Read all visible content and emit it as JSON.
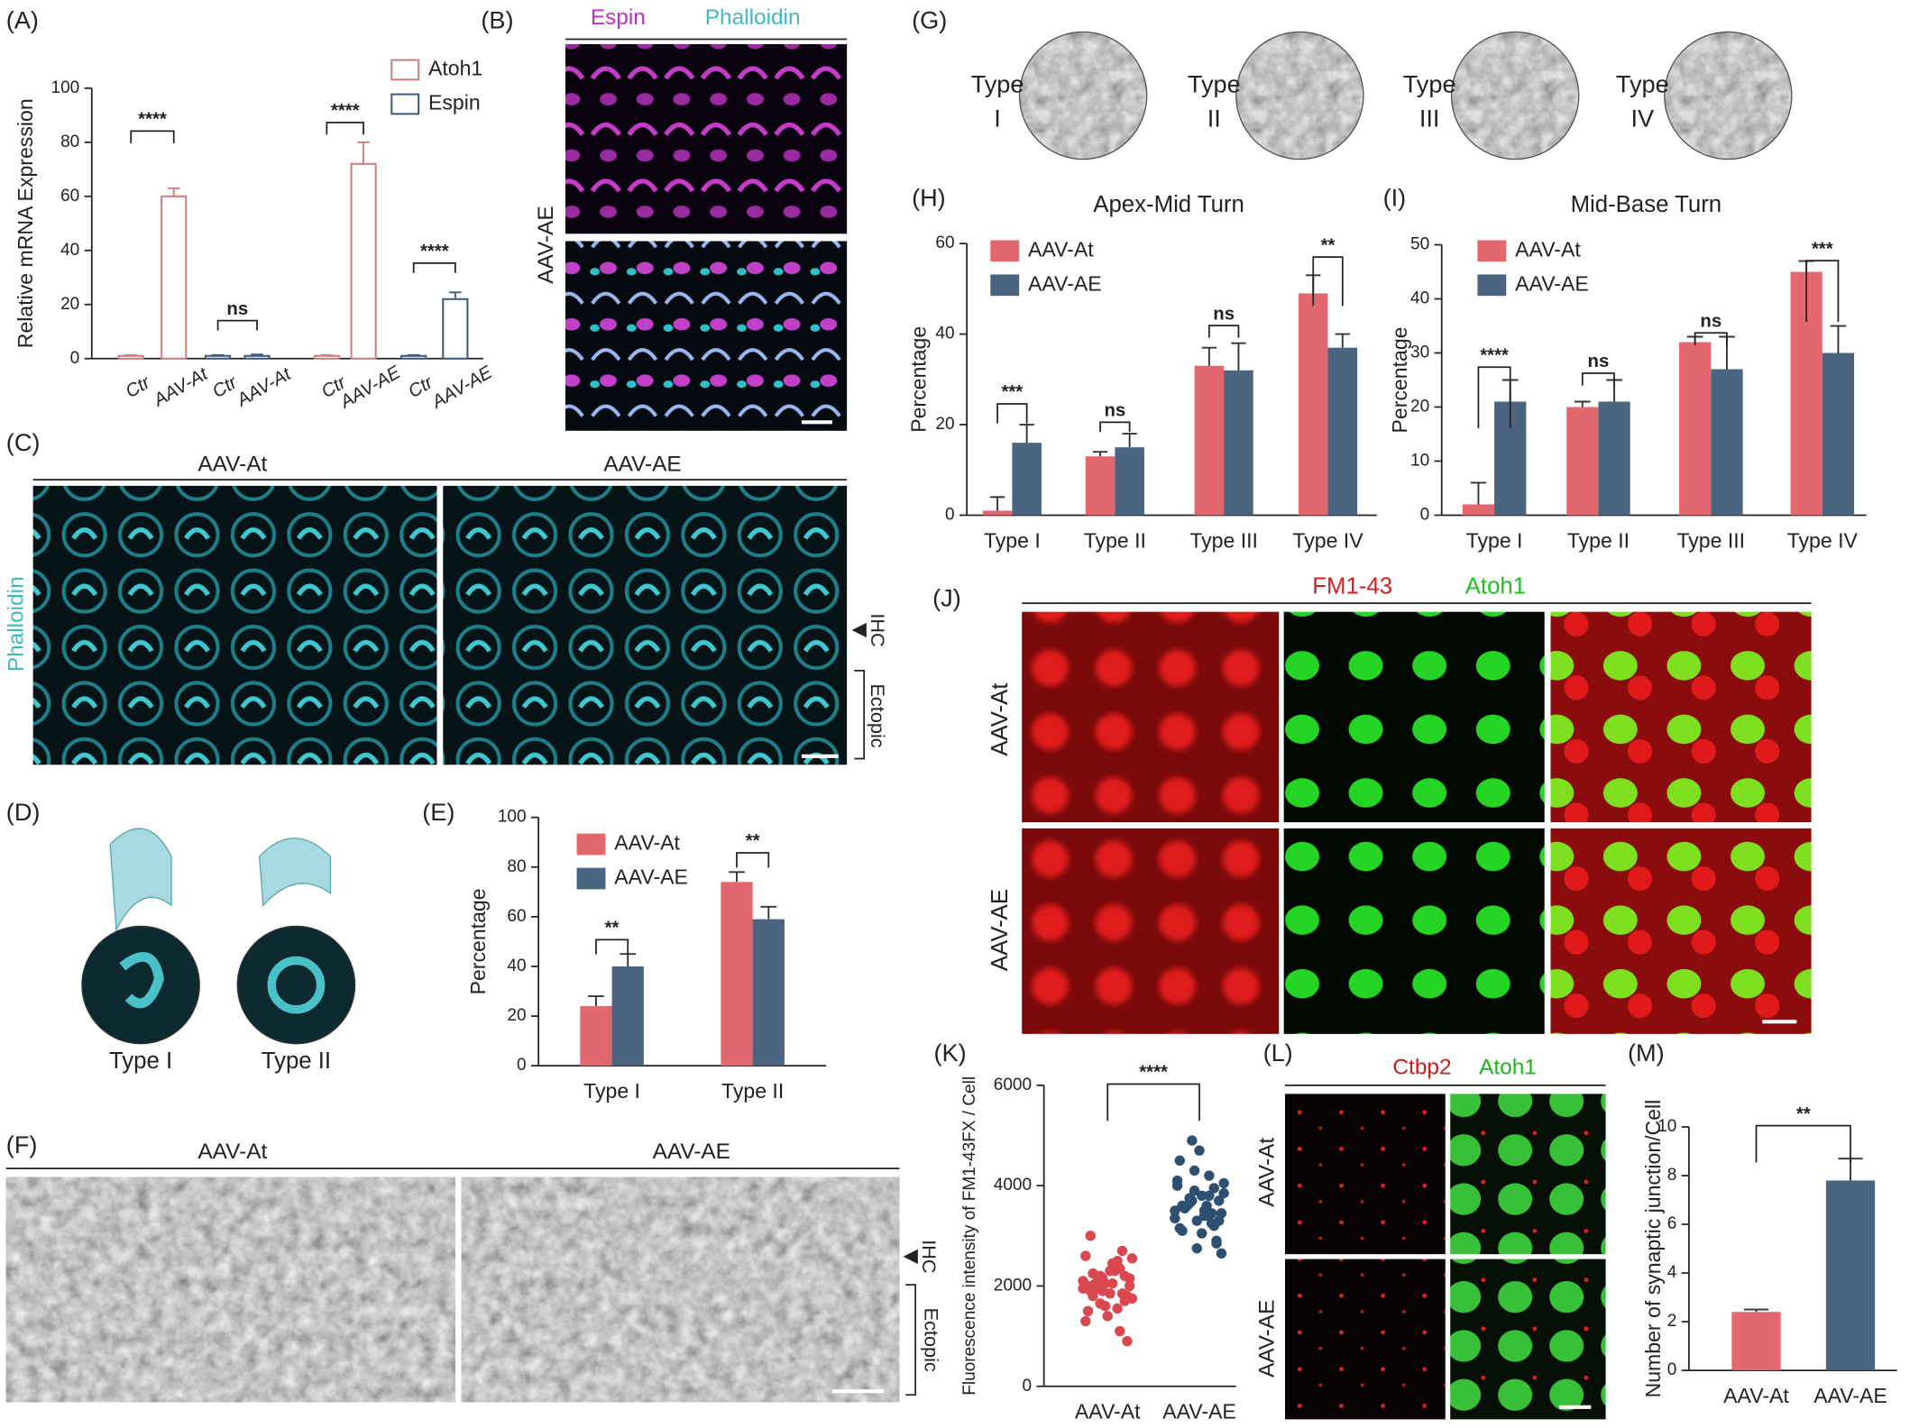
{
  "chart_data": [
    {
      "type": "bar",
      "ylabel": "Relative mRNA Expression",
      "ylim": [
        0,
        100
      ],
      "yticks": [
        0,
        20,
        40,
        60,
        80,
        100
      ],
      "bar_style": "outline",
      "categories": [
        "Ctr",
        "AAV-At",
        "Ctr",
        "AAV-At",
        "Ctr",
        "AAV-AE",
        "Ctr",
        "AAV-AE"
      ],
      "series": [
        {
          "name": "Atoh1",
          "color": "#c98080",
          "values": [
            1,
            60,
            null,
            null,
            1,
            72,
            null,
            null
          ],
          "errors": [
            0.3,
            3,
            null,
            null,
            0.3,
            8,
            null,
            null
          ]
        },
        {
          "name": "Espin",
          "color": "#3f5a7a",
          "values": [
            null,
            null,
            1,
            1,
            null,
            null,
            1,
            22
          ],
          "errors": [
            null,
            null,
            0.3,
            0.5,
            null,
            null,
            0.3,
            2.5
          ]
        }
      ],
      "annotations": [
        "****",
        "ns",
        "****",
        "****"
      ]
    },
    {
      "type": "bar",
      "ylabel": "Percentage",
      "ylim": [
        0,
        100
      ],
      "yticks": [
        0,
        20,
        40,
        60,
        80,
        100
      ],
      "bar_style": "filled",
      "categories": [
        "Type I",
        "Type II"
      ],
      "series": [
        {
          "name": "AAV-At",
          "color": "#e3676f",
          "values": [
            24,
            74
          ],
          "errors": [
            4,
            4
          ]
        },
        {
          "name": "AAV-AE",
          "color": "#4b6480",
          "values": [
            40,
            59
          ],
          "errors": [
            5,
            5
          ]
        }
      ],
      "annotations": [
        "**",
        "**"
      ]
    },
    {
      "type": "bar",
      "title": "Apex-Mid Turn",
      "ylabel": "Percentage",
      "ylim": [
        0,
        60
      ],
      "yticks": [
        0,
        20,
        40,
        60
      ],
      "bar_style": "filled",
      "categories": [
        "Type I",
        "Type II",
        "Type III",
        "Type IV"
      ],
      "series": [
        {
          "name": "AAV-At",
          "color": "#e3676f",
          "values": [
            1,
            13,
            33,
            49
          ],
          "errors": [
            3,
            1,
            4,
            4
          ]
        },
        {
          "name": "AAV-AE",
          "color": "#4b6480",
          "values": [
            16,
            15,
            32,
            37
          ],
          "errors": [
            4,
            3,
            6,
            3
          ]
        }
      ],
      "annotations": [
        "***",
        "ns",
        "ns",
        "**"
      ]
    },
    {
      "type": "bar",
      "title": "Mid-Base Turn",
      "ylabel": "Percentage",
      "ylim": [
        0,
        50
      ],
      "yticks": [
        0,
        10,
        20,
        30,
        40,
        50
      ],
      "bar_style": "filled",
      "categories": [
        "Type I",
        "Type II",
        "Type III",
        "Type IV"
      ],
      "series": [
        {
          "name": "AAV-At",
          "color": "#e3676f",
          "values": [
            2,
            20,
            32,
            45
          ],
          "errors": [
            4,
            1,
            1,
            2
          ]
        },
        {
          "name": "AAV-AE",
          "color": "#4b6480",
          "values": [
            21,
            21,
            27,
            30
          ],
          "errors": [
            4,
            4,
            6,
            5
          ]
        }
      ],
      "annotations": [
        "****",
        "ns",
        "ns",
        "***"
      ]
    },
    {
      "type": "strip",
      "ylabel": "Fluorescence intensity of FM1-43FX / Cell",
      "ylim": [
        0,
        6000
      ],
      "yticks": [
        0,
        2000,
        4000,
        6000
      ],
      "categories": [
        "AAV-At",
        "AAV-AE"
      ],
      "colors": [
        "#d9484f",
        "#2f4f70"
      ],
      "values": [
        [
          2100,
          1850,
          2300,
          1950,
          2600,
          1700,
          2050,
          2200,
          1500,
          1800,
          2400,
          2150,
          1900,
          2000,
          2500,
          1600,
          2250,
          1750,
          2350,
          1400,
          2050,
          1950,
          2700,
          1850,
          2100,
          1300,
          2200,
          2450,
          1650,
          2000,
          900,
          2300,
          1900,
          3000,
          2150,
          1550,
          2050,
          1800,
          2550,
          1100
        ],
        [
          3500,
          3200,
          3800,
          3650,
          4100,
          2900,
          3400,
          3700,
          4500,
          3300,
          3600,
          3900,
          3100,
          3450,
          4200,
          2750,
          3550,
          3850,
          3250,
          4700,
          3600,
          3350,
          3950,
          3050,
          3750,
          4000,
          2850,
          3500,
          4900,
          3150,
          3700,
          3400,
          4300,
          3600,
          2650,
          3800,
          3300,
          3550,
          4050,
          3450
        ]
      ],
      "annotations": [
        "****"
      ]
    },
    {
      "type": "bar",
      "ylabel": "Number of synaptic junction/Cell",
      "ylim": [
        0,
        10
      ],
      "yticks": [
        0,
        2,
        4,
        6,
        8,
        10
      ],
      "bar_style": "filled",
      "categories": [
        "AAV-At",
        "AAV-AE"
      ],
      "colors": [
        "#e3676f",
        "#4b6480"
      ],
      "values": [
        2.4,
        7.8
      ],
      "errors": [
        0.1,
        0.9
      ],
      "annotations": [
        "**"
      ]
    }
  ],
  "figure": {
    "panels": [
      "(A)",
      "(B)",
      "(C)",
      "(D)",
      "(E)",
      "(F)",
      "(G)",
      "(H)",
      "(I)",
      "(J)",
      "(K)",
      "(L)",
      "(M)"
    ],
    "B": {
      "channels": [
        "Espin",
        "Phalloidin"
      ],
      "row": "AAV-AE"
    },
    "C": {
      "columns": [
        "AAV-At",
        "AAV-AE"
      ],
      "stain": "Phalloidin",
      "markers": [
        "IHC",
        "Ectopic"
      ]
    },
    "D": {
      "types": [
        "Type I",
        "Type II"
      ]
    },
    "F": {
      "columns": [
        "AAV-At",
        "AAV-AE"
      ],
      "markers": [
        "IHC",
        "Ectopic"
      ]
    },
    "G": {
      "types": [
        [
          "Type",
          "I"
        ],
        [
          "Type",
          "II"
        ],
        [
          "Type",
          "III"
        ],
        [
          "Type",
          "IV"
        ]
      ]
    },
    "J": {
      "channels": [
        "FM1-43",
        "Atoh1"
      ],
      "rows": [
        "AAV-At",
        "AAV-AE"
      ]
    },
    "L": {
      "channels": [
        "Ctbp2",
        "Atoh1"
      ],
      "rows": [
        "AAV-At",
        "AAV-AE"
      ]
    }
  }
}
